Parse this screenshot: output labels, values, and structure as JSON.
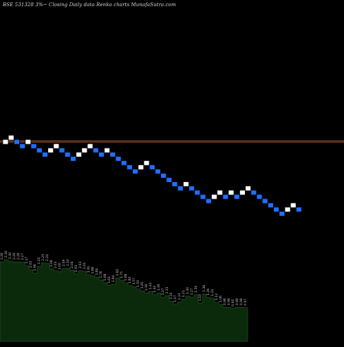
{
  "header": {
    "title": "BSE 531328  3%~  Closing Daily data  Renko  charts MunafaSutra.com"
  },
  "colors": {
    "background": "#000000",
    "up_brick": "#ffffff",
    "down_brick": "#1e6fff",
    "brick_border": "#000000",
    "hline": "#a05a2c",
    "volume_fill": "#0b2a0b",
    "volume_edge": "#2a6a2a",
    "volume_label": "#c8c8c8"
  },
  "chart_data": [
    {
      "type": "renko",
      "title": "BSE 531328  3%~  Closing Daily data  Renko  charts MunafaSutra.com",
      "bricks": [
        {
          "dir": "up",
          "level": 0
        },
        {
          "dir": "up",
          "level": 1
        },
        {
          "dir": "down",
          "level": 0
        },
        {
          "dir": "down",
          "level": -1
        },
        {
          "dir": "up",
          "level": 0
        },
        {
          "dir": "down",
          "level": -1
        },
        {
          "dir": "down",
          "level": -2
        },
        {
          "dir": "down",
          "level": -3
        },
        {
          "dir": "up",
          "level": -2
        },
        {
          "dir": "up",
          "level": -1
        },
        {
          "dir": "down",
          "level": -2
        },
        {
          "dir": "down",
          "level": -3
        },
        {
          "dir": "down",
          "level": -4
        },
        {
          "dir": "up",
          "level": -3
        },
        {
          "dir": "up",
          "level": -2
        },
        {
          "dir": "up",
          "level": -1
        },
        {
          "dir": "down",
          "level": -2
        },
        {
          "dir": "down",
          "level": -3
        },
        {
          "dir": "up",
          "level": -2
        },
        {
          "dir": "down",
          "level": -3
        },
        {
          "dir": "down",
          "level": -4
        },
        {
          "dir": "down",
          "level": -5
        },
        {
          "dir": "down",
          "level": -6
        },
        {
          "dir": "down",
          "level": -7
        },
        {
          "dir": "up",
          "level": -6
        },
        {
          "dir": "up",
          "level": -5
        },
        {
          "dir": "down",
          "level": -6
        },
        {
          "dir": "down",
          "level": -7
        },
        {
          "dir": "down",
          "level": -8
        },
        {
          "dir": "down",
          "level": -9
        },
        {
          "dir": "down",
          "level": -10
        },
        {
          "dir": "down",
          "level": -11
        },
        {
          "dir": "up",
          "level": -10
        },
        {
          "dir": "down",
          "level": -11
        },
        {
          "dir": "down",
          "level": -12
        },
        {
          "dir": "down",
          "level": -13
        },
        {
          "dir": "down",
          "level": -14
        },
        {
          "dir": "up",
          "level": -13
        },
        {
          "dir": "up",
          "level": -12
        },
        {
          "dir": "down",
          "level": -13
        },
        {
          "dir": "up",
          "level": -12
        },
        {
          "dir": "down",
          "level": -13
        },
        {
          "dir": "up",
          "level": -12
        },
        {
          "dir": "up",
          "level": -11
        },
        {
          "dir": "down",
          "level": -12
        },
        {
          "dir": "down",
          "level": -13
        },
        {
          "dir": "down",
          "level": -14
        },
        {
          "dir": "down",
          "level": -15
        },
        {
          "dir": "down",
          "level": -16
        },
        {
          "dir": "down",
          "level": -17
        },
        {
          "dir": "up",
          "level": -16
        },
        {
          "dir": "up",
          "level": -15
        },
        {
          "dir": "down",
          "level": -16
        }
      ],
      "horizontal_lines": [
        1.0,
        3.0
      ],
      "volume_labels": [
        "2.28",
        "2.34",
        "2.30",
        "2.28",
        "2.28",
        "2.27",
        "2.17",
        "2.05",
        "1.96",
        "2.15",
        "2.25",
        "2.24",
        "2.08",
        "2.03",
        "2.00",
        "2.09",
        "2.10",
        "2.04",
        "1.93",
        "2.03",
        "2.01",
        "1.91",
        "1.88",
        "1.84",
        "1.76",
        "1.68",
        "1.61",
        "1.64",
        "1.82",
        "1.75",
        "1.68",
        "1.60",
        "1.57",
        "1.50",
        "1.45",
        "1.39",
        "1.43",
        "1.34",
        "1.39",
        "1.27",
        "1.31",
        "1.15",
        "1.07",
        "1.13",
        "1.21",
        "1.30",
        "1.27",
        "1.34",
        "1.10",
        "1.36",
        "1.26",
        "1.24",
        "1.12",
        "1.06",
        "0.98",
        "0.98",
        "0.95",
        "0.98",
        "0.98",
        "0.97"
      ],
      "volume_values": [
        2.28,
        2.34,
        2.3,
        2.28,
        2.28,
        2.27,
        2.17,
        2.05,
        1.96,
        2.15,
        2.25,
        2.24,
        2.08,
        2.03,
        2.0,
        2.09,
        2.1,
        2.04,
        1.93,
        2.03,
        2.01,
        1.91,
        1.88,
        1.84,
        1.76,
        1.68,
        1.61,
        1.64,
        1.82,
        1.75,
        1.68,
        1.6,
        1.57,
        1.5,
        1.45,
        1.39,
        1.43,
        1.34,
        1.39,
        1.27,
        1.31,
        1.15,
        1.07,
        1.13,
        1.21,
        1.3,
        1.27,
        1.34,
        1.1,
        1.36,
        1.26,
        1.24,
        1.12,
        1.06,
        0.98,
        0.98,
        0.95,
        0.98,
        0.98,
        0.97
      ]
    }
  ]
}
